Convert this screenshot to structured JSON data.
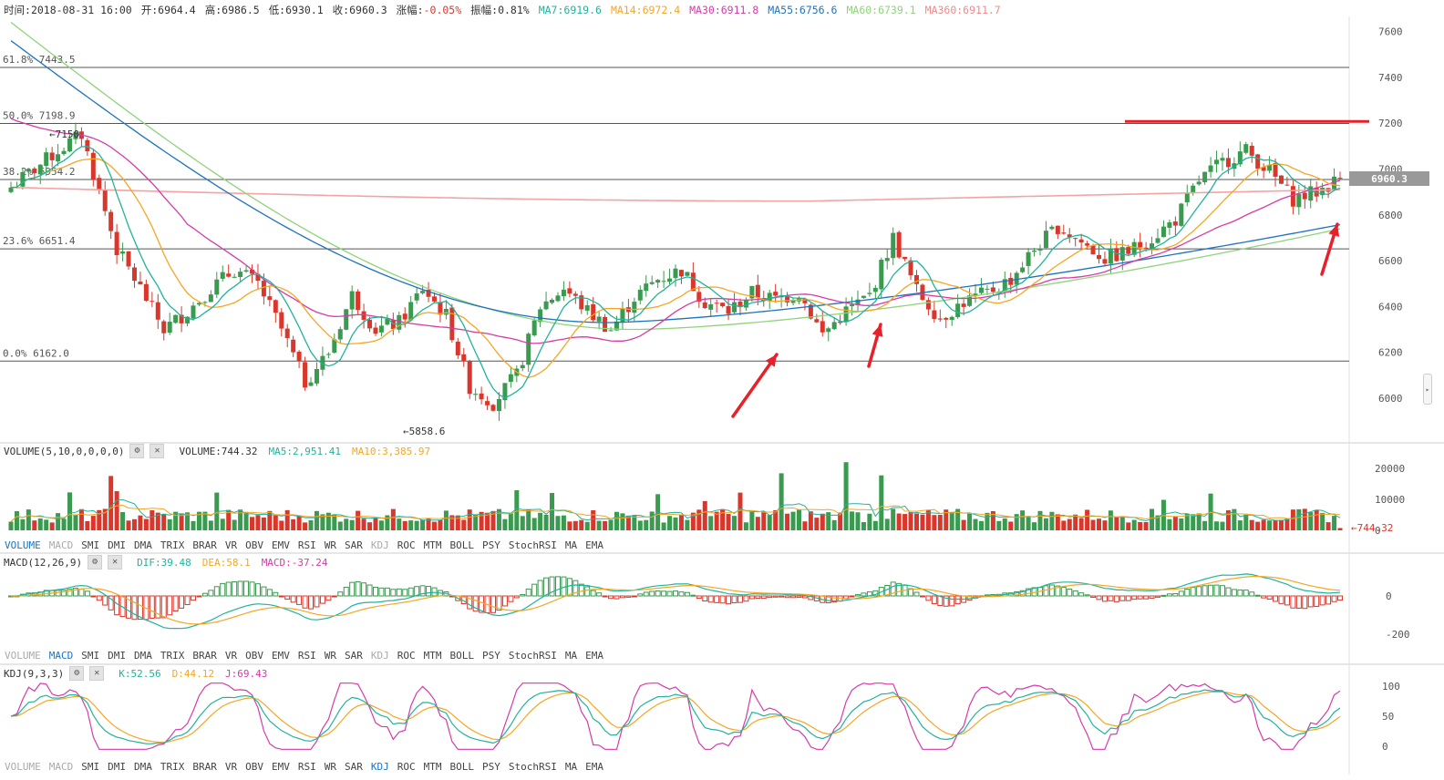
{
  "header": {
    "time_label": "时间:",
    "time": "2018-08-31 16:00",
    "open_label": "开:",
    "open": "6964.4",
    "high_label": "高:",
    "high": "6986.5",
    "low_label": "低:",
    "low": "6930.1",
    "close_label": "收:",
    "close": "6960.3",
    "change_label": "涨幅:",
    "change": "-0.05%",
    "amplitude_label": "振幅:",
    "amplitude": "0.81%",
    "ma": [
      {
        "text": "MA7:6919.6",
        "color": "#21b39b"
      },
      {
        "text": "MA14:6972.4",
        "color": "#f5a623"
      },
      {
        "text": "MA30:6911.8",
        "color": "#d63ba8"
      },
      {
        "text": "MA55:6756.6",
        "color": "#1e73be"
      },
      {
        "text": "MA60:6739.1",
        "color": "#8fd37a"
      },
      {
        "text": "MA360:6911.7",
        "color": "#f08a8a"
      }
    ]
  },
  "colors": {
    "up": "#3a9a4f",
    "down": "#d9372b",
    "ma7": "#21b39b",
    "ma14": "#f5a623",
    "ma30": "#d63ba8",
    "ma55": "#1e73be",
    "ma60": "#8fd37a",
    "ma360": "#f4a3a3",
    "annotation": "#e8202a",
    "grid": "#555"
  },
  "main_chart": {
    "price_axis": [
      "7600",
      "7400",
      "7200",
      "7000",
      "6800",
      "6600",
      "6400",
      "6200",
      "6000"
    ],
    "current_price": "6960.3",
    "fib_levels": [
      {
        "label": "61.8% 7443.5",
        "value": 7443.5
      },
      {
        "label": "50.0% 7198.9",
        "value": 7198.9
      },
      {
        "label": "38.2% 6954.2",
        "value": 6954.2
      },
      {
        "label": "23.6% 6651.4",
        "value": 6651.4
      },
      {
        "label": "0.0% 6162.0",
        "value": 6162.0
      }
    ],
    "high_marker": "7150",
    "low_marker": "5858.6",
    "resistance_level": 7208,
    "annotation_arrows": [
      {
        "icon": "red-arrow-up-icon"
      },
      {
        "icon": "red-arrow-up-icon"
      },
      {
        "icon": "red-arrow-up-icon"
      }
    ]
  },
  "volume_panel": {
    "title": "VOLUME(5,10,0,0,0,0)",
    "volume": "VOLUME:744.32",
    "ma5": "MA5:2,951.41",
    "ma10": "MA10:3,385.97",
    "axis": [
      "20000",
      "10000",
      "0"
    ],
    "last": "744.32"
  },
  "macd_panel": {
    "title": "MACD(12,26,9)",
    "dif": "DIF:39.48",
    "dea": "DEA:58.1",
    "macd": "MACD:-37.24",
    "axis": [
      "0",
      "-200"
    ]
  },
  "kdj_panel": {
    "title": "KDJ(9,3,3)",
    "k": "K:52.56",
    "d": "D:44.12",
    "j": "J:69.43",
    "axis": [
      "100",
      "50",
      "0"
    ]
  },
  "indicator_tabs": [
    "VOLUME",
    "MACD",
    "SMI",
    "DMI",
    "DMA",
    "TRIX",
    "BRAR",
    "VR",
    "OBV",
    "EMV",
    "RSI",
    "WR",
    "SAR",
    "KDJ",
    "ROC",
    "MTM",
    "BOLL",
    "PSY",
    "StochRSI",
    "MA",
    "EMA"
  ],
  "tab_states": {
    "bar1": {
      "active": "VOLUME",
      "inactive": [
        "MACD",
        "KDJ"
      ]
    },
    "bar2": {
      "active": "MACD",
      "inactive": [
        "VOLUME",
        "KDJ"
      ]
    },
    "bar3": {
      "active": "KDJ",
      "inactive": [
        "VOLUME",
        "MACD"
      ]
    }
  },
  "icons": {
    "settings": "gear-icon",
    "close": "close-icon",
    "handle": "chevron-right-icon"
  }
}
